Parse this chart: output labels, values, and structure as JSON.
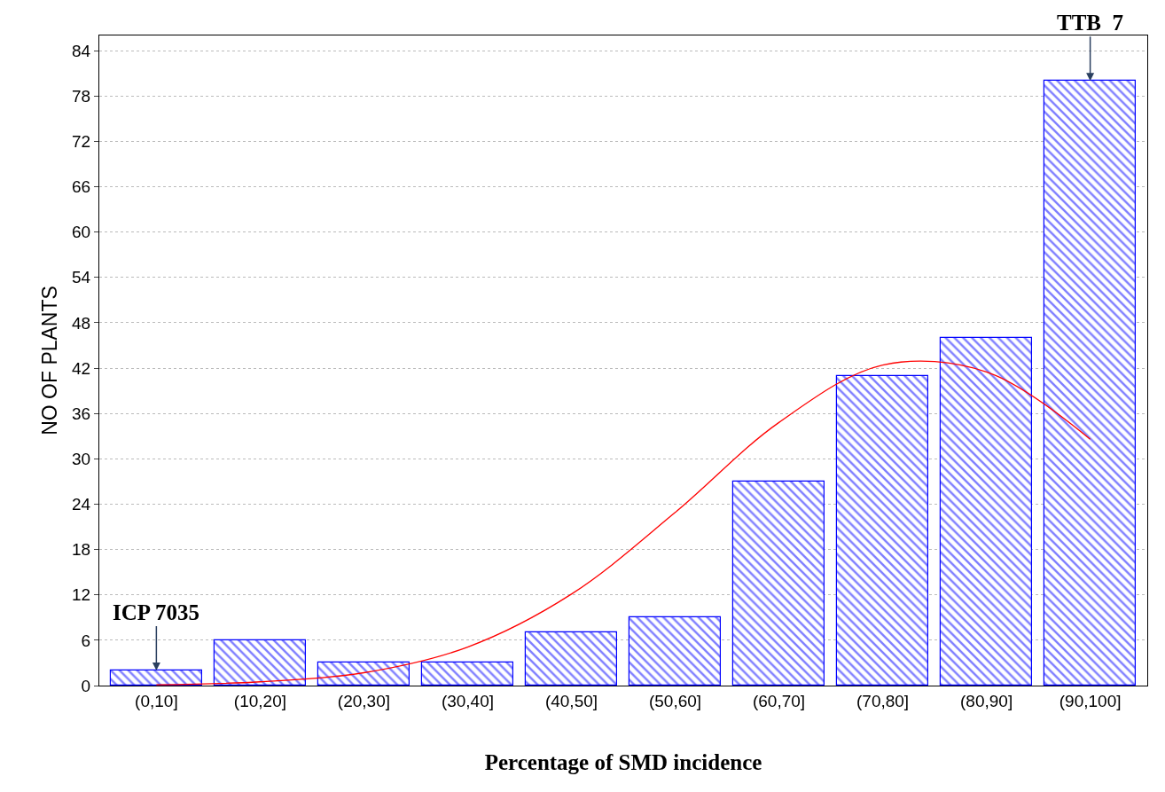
{
  "chart_data": {
    "type": "bar",
    "xlabel": "Percentage of SMD incidence",
    "ylabel": "NO OF PLANTS",
    "categories": [
      "(0,10]",
      "(10,20]",
      "(20,30]",
      "(30,40]",
      "(40,50]",
      "(50,60]",
      "(60,70]",
      "(70,80]",
      "(80,90]",
      "(90,100]"
    ],
    "values": [
      2,
      6,
      3,
      3,
      7,
      9,
      27,
      41,
      46,
      80
    ],
    "color": "#0000ff",
    "series": [
      {
        "type": "line",
        "color": "#ff0000",
        "x": [
          "(0,10]",
          "(10,20]",
          "(20,30]",
          "(30,40]",
          "(40,50]",
          "(50,60]",
          "(60,70]",
          "(70,80]",
          "(80,90]",
          "(90,100]"
        ],
        "values": [
          0.1,
          0.5,
          1.7,
          5.1,
          12.1,
          22.9,
          34.8,
          42.4,
          41.5,
          32.6
        ]
      }
    ],
    "ylim": [
      0,
      86
    ],
    "yticks": [
      0,
      6,
      12,
      18,
      24,
      30,
      36,
      42,
      48,
      54,
      60,
      66,
      72,
      78,
      84
    ],
    "grid": "y",
    "marker": "none",
    "line_style": "solid",
    "annotations": [
      {
        "text": "ICP 7035",
        "x": "(0,10]",
        "y": 2
      },
      {
        "text": "TTB  7",
        "x": "(90,100]",
        "y": 80
      }
    ]
  }
}
